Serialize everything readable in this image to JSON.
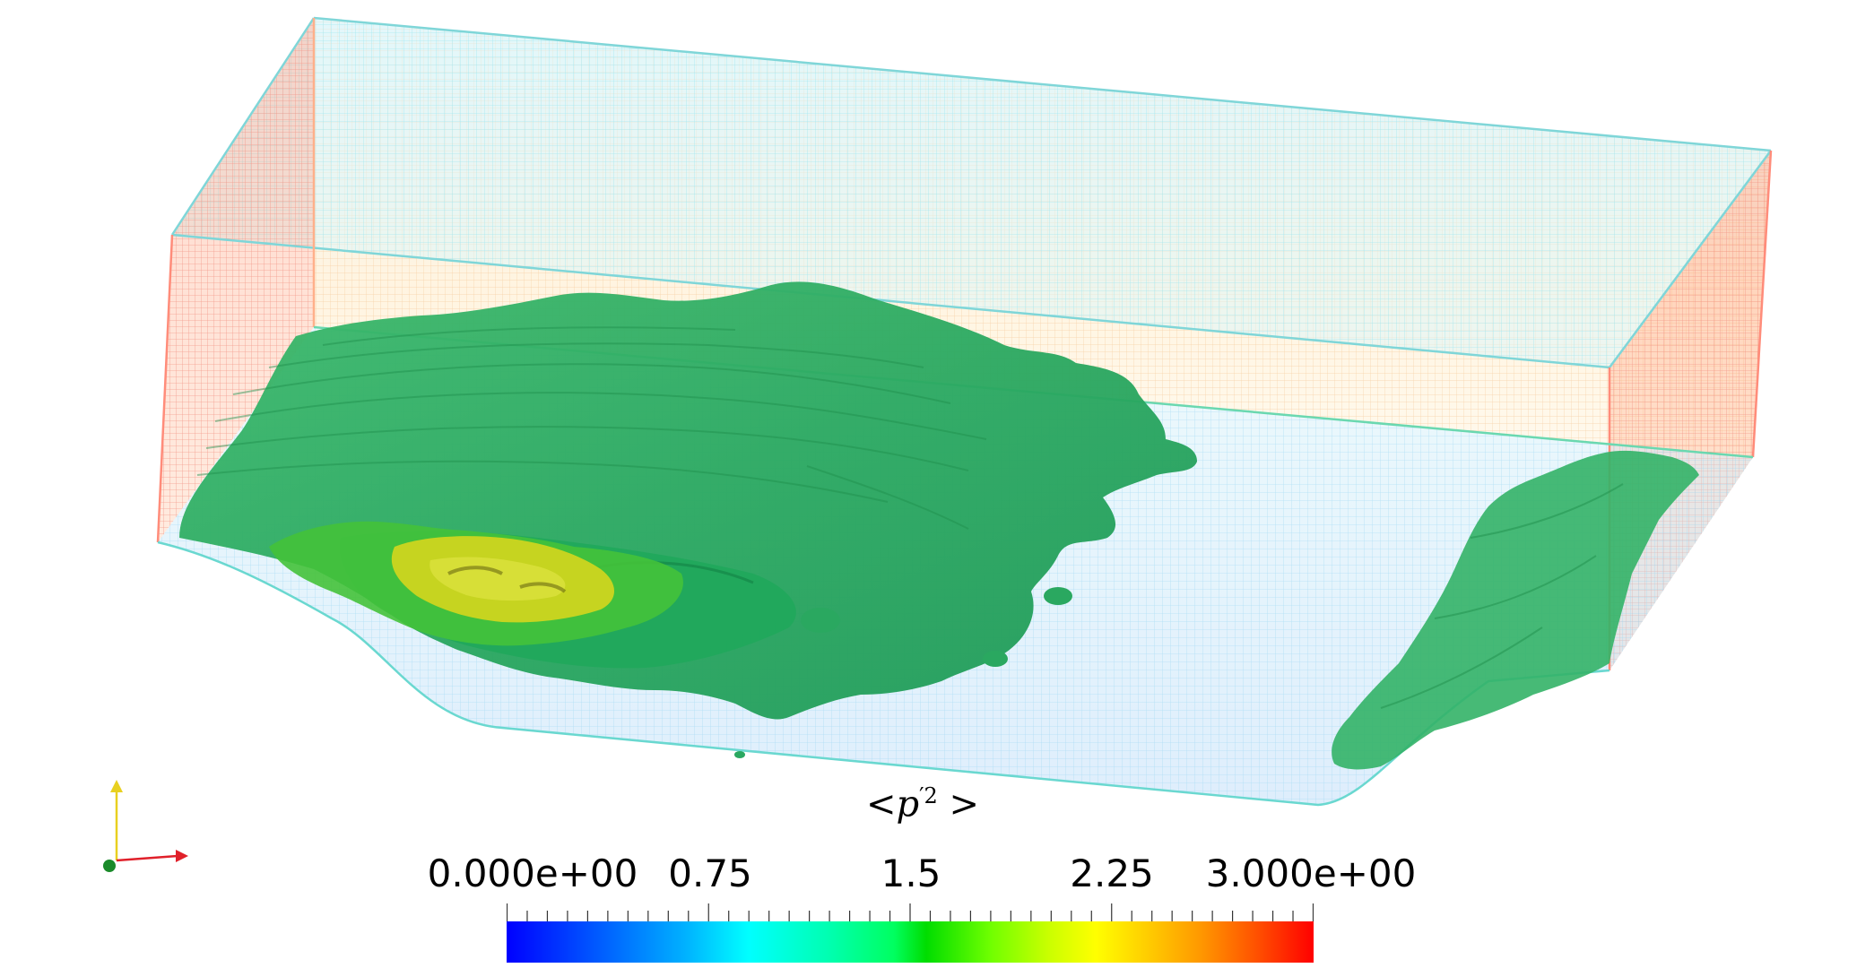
{
  "colorbar": {
    "title_prefix": "<p",
    "title_sup": "′2",
    "title_suffix": " >",
    "tick_labels": [
      "0.000e+00",
      "0.75",
      "1.5",
      "2.25",
      "3.000e+00"
    ],
    "range": [
      0,
      3
    ],
    "colormap": "jet"
  },
  "scene": {
    "isosurface_color": "#2fb36a",
    "core_color": "#c8d21e",
    "mesh_colors": {
      "top": "#7ee0ee",
      "side": "#f08a7a",
      "bottom": "#8fd8f0"
    }
  },
  "axes_glyph": {
    "x_color": "#e0202a",
    "y_color": "#e8d020",
    "z_color": "#1a8a2a"
  }
}
